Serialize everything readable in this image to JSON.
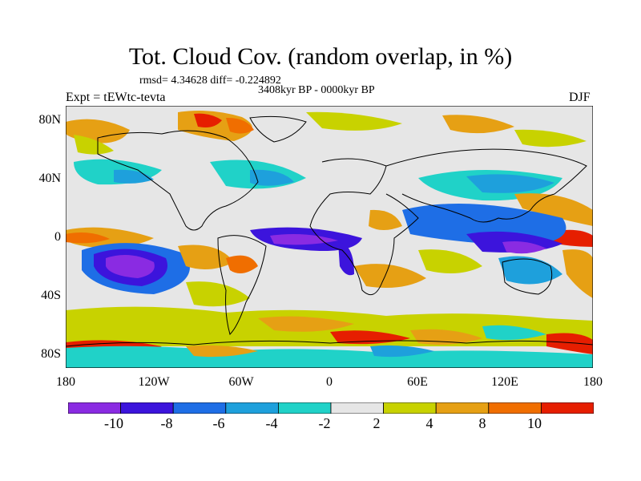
{
  "title": "Tot. Cloud Cov. (random overlap, in %)",
  "stats_line": "rmsd= 4.34628 diff= -0.224892",
  "period": "3408kyr BP - 0000kyr BP",
  "experiment": "Expt = tEWtc-tevta",
  "season": "DJF",
  "lat_labels": [
    "80N",
    "40N",
    "0",
    "40S",
    "80S"
  ],
  "lon_labels": [
    "180",
    "120W",
    "60W",
    "0",
    "60E",
    "120E",
    "180"
  ],
  "colorbar": {
    "colors": [
      "#8a2be2",
      "#3c14dc",
      "#1e6ee6",
      "#1ea0dc",
      "#20d2c8",
      "#e6e6e6",
      "#c8d200",
      "#e6a014",
      "#f06e00",
      "#e61e00"
    ],
    "labels": [
      "-10",
      "-8",
      "-6",
      "-4",
      "-2",
      "2",
      "4",
      "8",
      "10"
    ]
  },
  "legend_icons": {
    "land_outline": "coastline-icon"
  }
}
